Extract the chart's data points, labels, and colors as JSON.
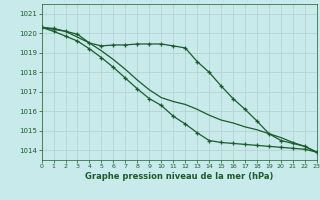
{
  "title": "Graphe pression niveau de la mer (hPa)",
  "background_color": "#c8eaea",
  "grid_color": "#b0d0d0",
  "line_color": "#1a5c2a",
  "xlim": [
    0,
    23
  ],
  "ylim": [
    1013.5,
    1021.5
  ],
  "yticks": [
    1014,
    1015,
    1016,
    1017,
    1018,
    1019,
    1020,
    1021
  ],
  "xticks": [
    0,
    1,
    2,
    3,
    4,
    5,
    6,
    7,
    8,
    9,
    10,
    11,
    12,
    13,
    14,
    15,
    16,
    17,
    18,
    19,
    20,
    21,
    22,
    23
  ],
  "series1_top": [
    1020.3,
    1020.25,
    1020.1,
    1019.95,
    1019.5,
    1019.35,
    1019.4,
    1019.4,
    1019.45,
    1019.45,
    1019.45,
    1019.35,
    1019.25,
    1018.55,
    1018.0,
    1017.3,
    1016.65,
    1016.1,
    1015.5,
    1014.85,
    1014.5,
    1014.35,
    1014.2,
    1013.9
  ],
  "series2_mid": [
    1020.3,
    1020.2,
    1020.1,
    1019.8,
    1019.5,
    1019.1,
    1018.65,
    1018.15,
    1017.6,
    1017.1,
    1016.7,
    1016.5,
    1016.35,
    1016.1,
    1015.8,
    1015.55,
    1015.4,
    1015.2,
    1015.05,
    1014.85,
    1014.65,
    1014.4,
    1014.2,
    1013.9
  ],
  "series3_bot": [
    1020.3,
    1020.1,
    1019.85,
    1019.6,
    1019.2,
    1018.75,
    1018.25,
    1017.7,
    1017.15,
    1016.65,
    1016.3,
    1015.75,
    1015.35,
    1014.9,
    1014.5,
    1014.4,
    1014.35,
    1014.3,
    1014.25,
    1014.2,
    1014.15,
    1014.1,
    1014.05,
    1013.9
  ]
}
